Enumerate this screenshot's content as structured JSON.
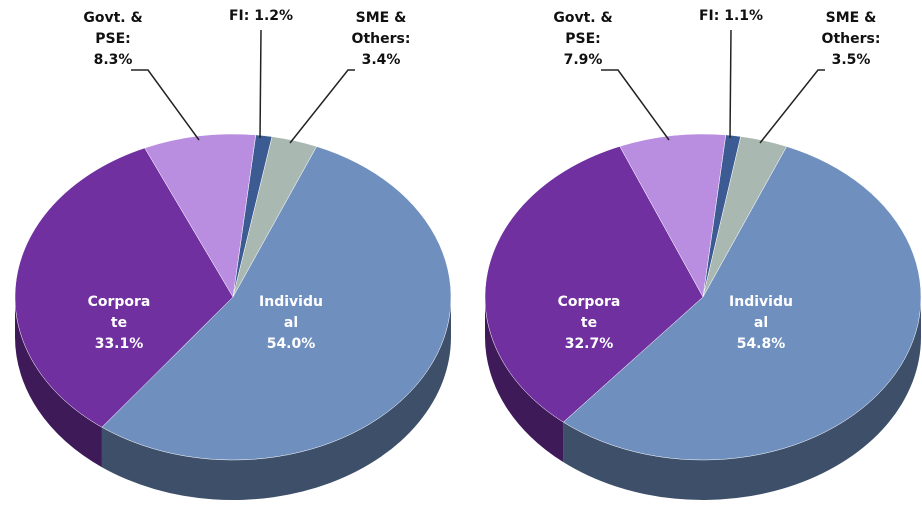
{
  "chart_data": [
    {
      "type": "pie",
      "categories": [
        "FI:",
        "SME & Others:",
        "Individual",
        "Corporate",
        "Govt. & PSE:"
      ],
      "values": [
        1.2,
        3.4,
        54.0,
        33.1,
        8.3
      ],
      "value_labels": [
        "1.2%",
        "3.4%",
        "54.0%",
        "33.1%",
        "8.3%"
      ],
      "colors": [
        "#3b5b92",
        "#a9b8b1",
        "#6f8fbf",
        "#7030a0",
        "#b98de0"
      ]
    },
    {
      "type": "pie",
      "categories": [
        "FI:",
        "SME & Others:",
        "Individual",
        "Corporate",
        "Govt. & PSE:"
      ],
      "values": [
        1.1,
        3.5,
        54.8,
        32.7,
        7.9
      ],
      "value_labels": [
        "1.1%",
        "3.5%",
        "54.8%",
        "32.7%",
        "7.9%"
      ],
      "colors": [
        "#3b5b92",
        "#a9b8b1",
        "#6f8fbf",
        "#7030a0",
        "#b98de0"
      ]
    }
  ]
}
